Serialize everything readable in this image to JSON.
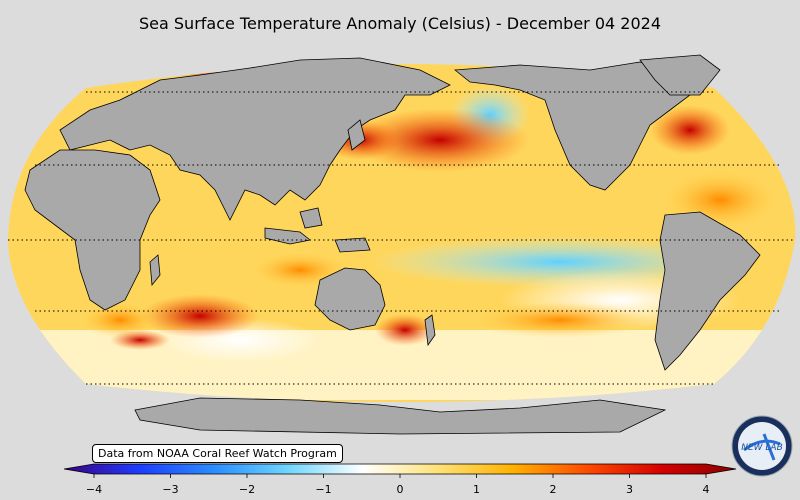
{
  "title": "Sea Surface Temperature Anomaly (Celsius) - December 04 2024",
  "source_note": "Data from NOAA Coral Reef Watch Program",
  "colorbar": {
    "min": -4,
    "max": 4,
    "ticks": [
      "−4",
      "−3",
      "−2",
      "−1",
      "0",
      "1",
      "2",
      "3",
      "4"
    ],
    "stops": [
      "#3a0080",
      "#1e3cff",
      "#2a8cff",
      "#6fd6ff",
      "#ffffff",
      "#ffe27a",
      "#ffb300",
      "#ff4b00",
      "#d60000",
      "#8b0000"
    ]
  },
  "map": {
    "projection": "robinson",
    "land_color": "#a9a9a9",
    "parallels_dotted": true
  },
  "logo": {
    "text": "NEW LAB",
    "icon": "globe-logo-icon"
  }
}
